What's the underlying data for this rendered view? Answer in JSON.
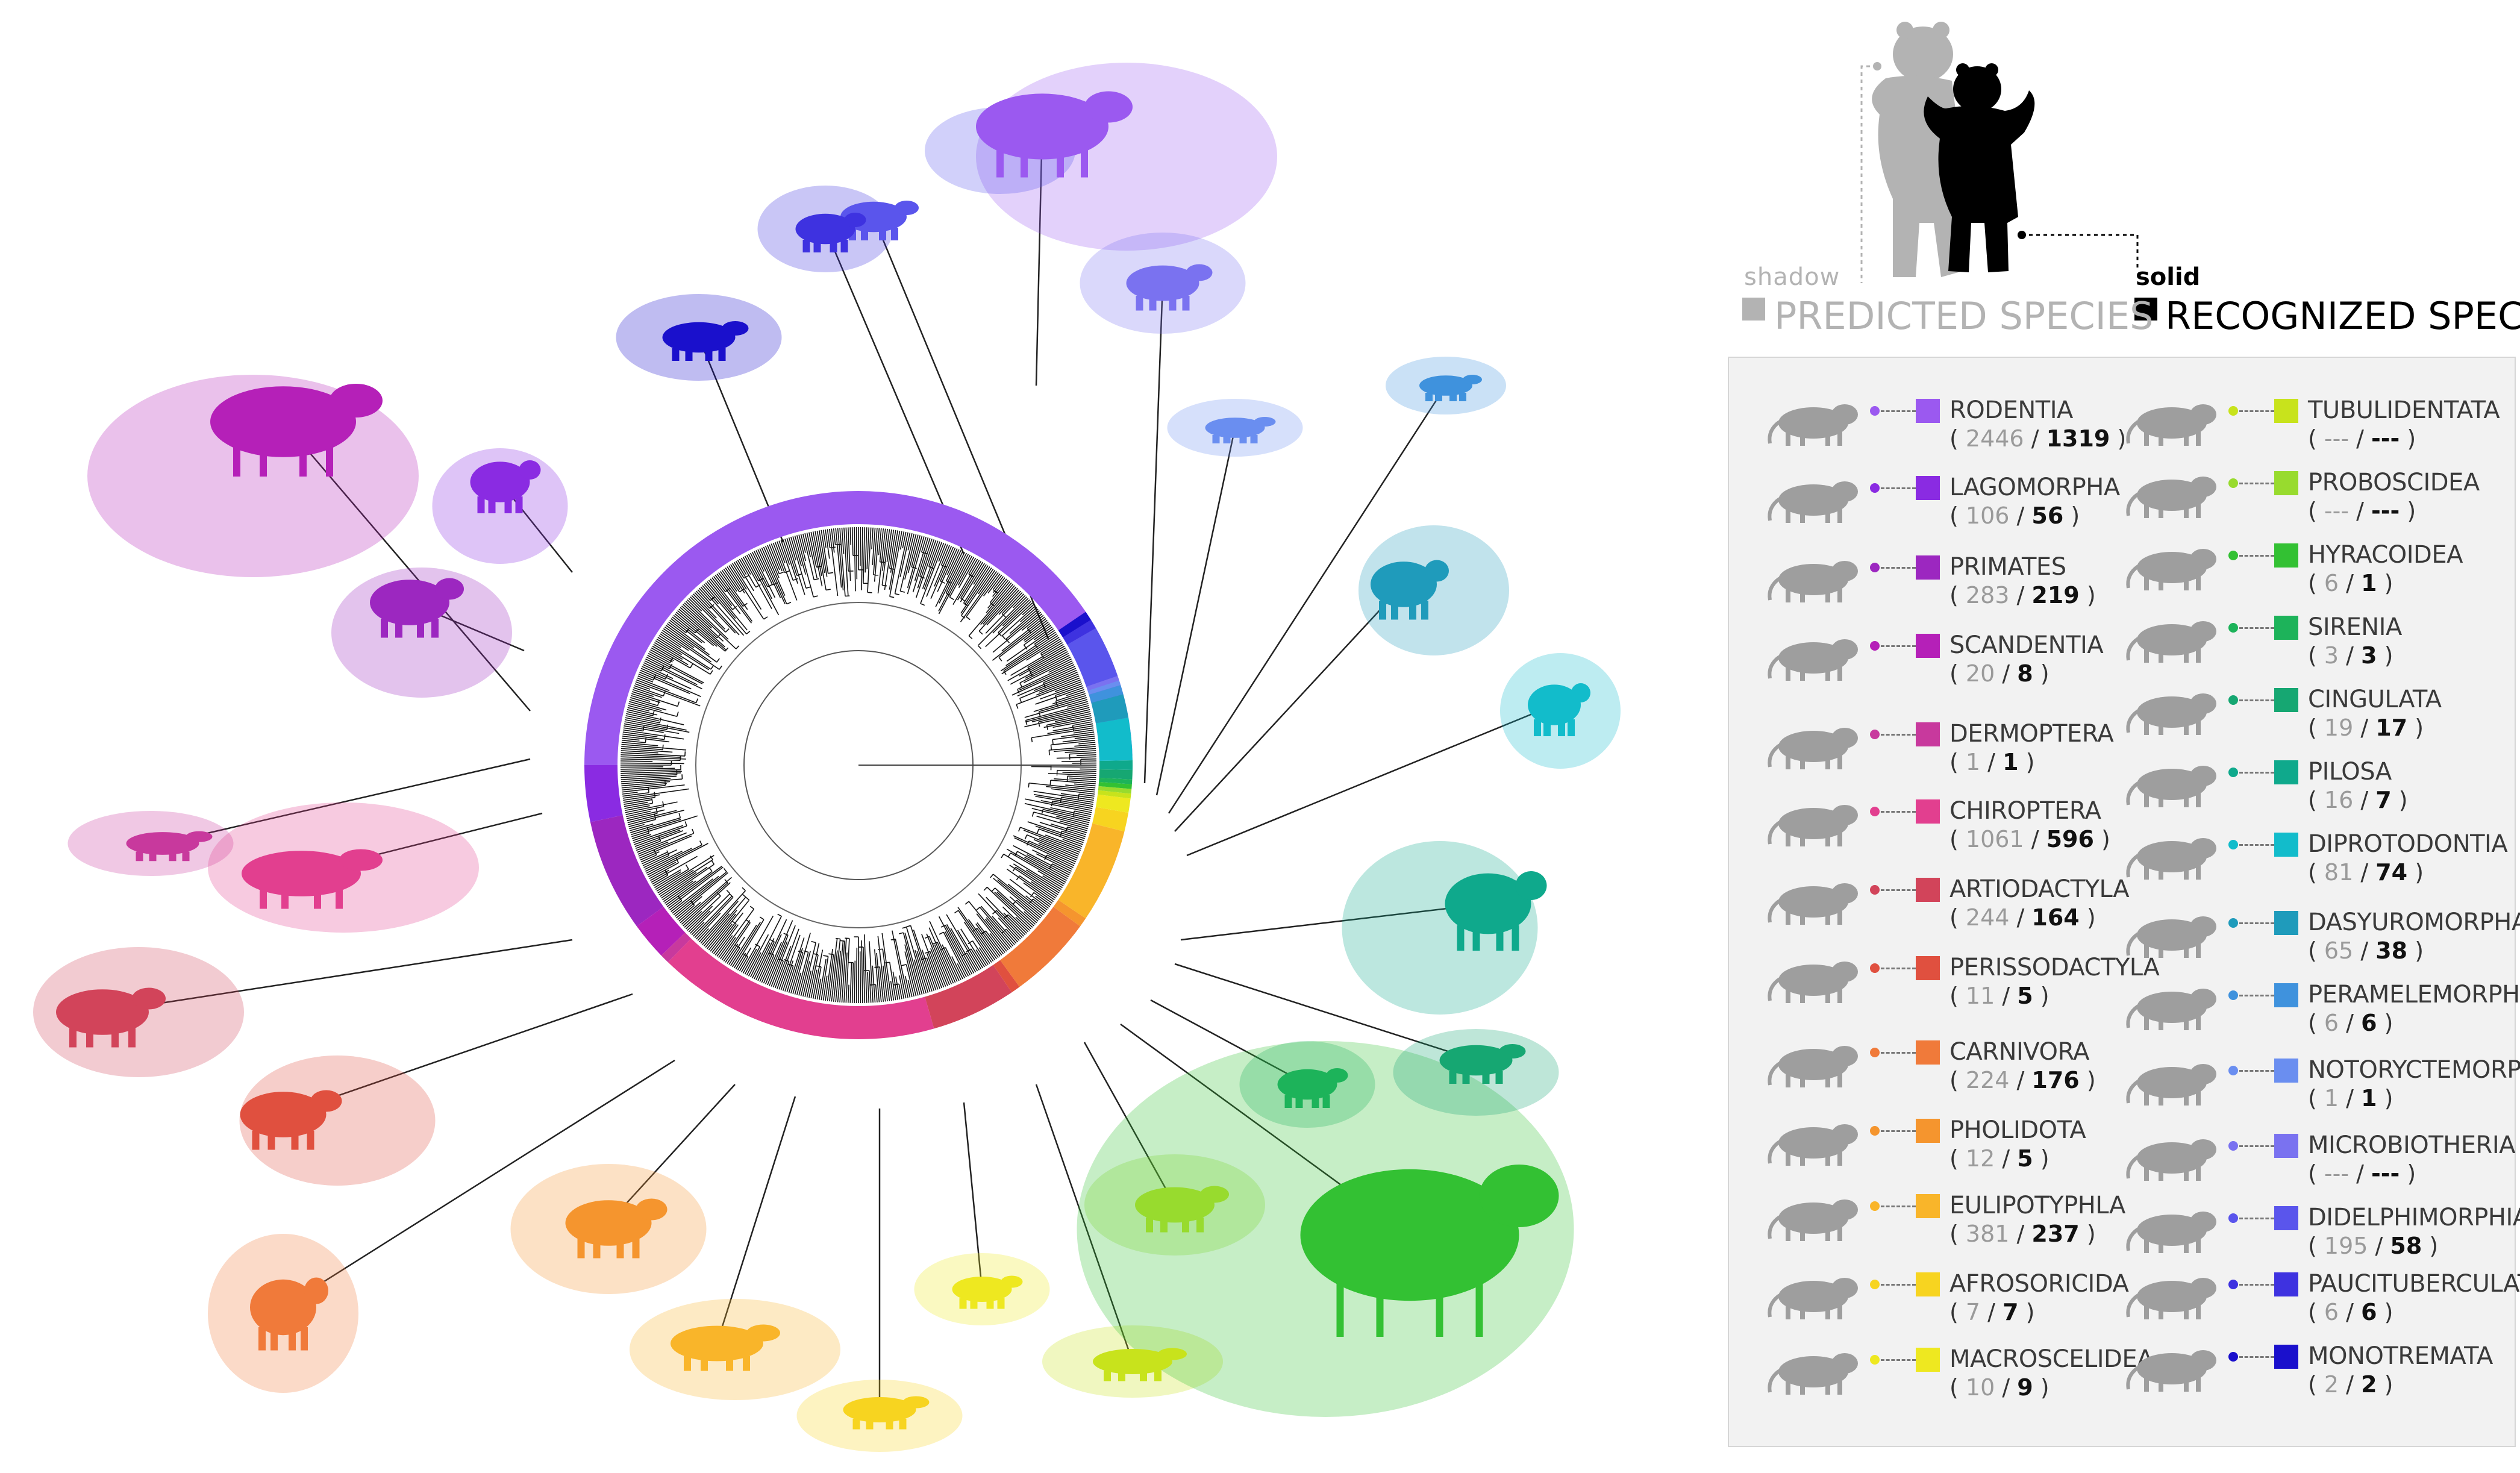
{
  "legend": {
    "shadow_label": "shadow",
    "solid_label": "solid",
    "predicted_label": "PREDICTED SPECIES",
    "recognized_label": "RECOGNIZED SPECIES",
    "predicted_color": "#b3b3b3",
    "recognized_color": "#000000"
  },
  "orders": [
    {
      "name": "RODENTIA",
      "predicted": "2446",
      "recognized": "1319",
      "color": "#9b59f0",
      "silhouette": "rodent-silhouette-icon"
    },
    {
      "name": "LAGOMORPHA",
      "predicted": "106",
      "recognized": "56",
      "color": "#8a2be2",
      "silhouette": "rabbit-silhouette-icon"
    },
    {
      "name": "PRIMATES",
      "predicted": "283",
      "recognized": "219",
      "color": "#9c27c0",
      "silhouette": "lemur-silhouette-icon"
    },
    {
      "name": "SCANDENTIA",
      "predicted": "20",
      "recognized": "8",
      "color": "#b520b8",
      "silhouette": "treeshrew-silhouette-icon"
    },
    {
      "name": "DERMOPTERA",
      "predicted": "1",
      "recognized": "1",
      "color": "#c8399d",
      "silhouette": "colugo-silhouette-icon"
    },
    {
      "name": "CHIROPTERA",
      "predicted": "1061",
      "recognized": "596",
      "color": "#e23f8f",
      "silhouette": "bat-silhouette-icon"
    },
    {
      "name": "ARTIODACTYLA",
      "predicted": "244",
      "recognized": "164",
      "color": "#d2445a",
      "silhouette": "deer-silhouette-icon"
    },
    {
      "name": "PERISSODACTYLA",
      "predicted": "11",
      "recognized": "5",
      "color": "#e0503f",
      "silhouette": "tapir-silhouette-icon"
    },
    {
      "name": "CARNIVORA",
      "predicted": "224",
      "recognized": "176",
      "color": "#f07a3a",
      "silhouette": "fox-silhouette-icon"
    },
    {
      "name": "PHOLIDOTA",
      "predicted": "12",
      "recognized": "5",
      "color": "#f5952e",
      "silhouette": "pangolin-silhouette-icon"
    },
    {
      "name": "EULIPOTYPHLA",
      "predicted": "381",
      "recognized": "237",
      "color": "#f9b52a",
      "silhouette": "hedgehog-silhouette-icon"
    },
    {
      "name": "AFROSORICIDA",
      "predicted": "7",
      "recognized": "7",
      "color": "#f7d420",
      "silhouette": "tenrec-silhouette-icon"
    },
    {
      "name": "MACROSCELIDEA",
      "predicted": "10",
      "recognized": "9",
      "color": "#eee820",
      "silhouette": "elephant-shrew-silhouette-icon"
    },
    {
      "name": "TUBULIDENTATA",
      "predicted": "---",
      "recognized": "---",
      "color": "#c8e31c",
      "silhouette": "aardvark-silhouette-icon"
    },
    {
      "name": "PROBOSCIDEA",
      "predicted": "---",
      "recognized": "---",
      "color": "#98db2e",
      "silhouette": "elephant-silhouette-icon"
    },
    {
      "name": "HYRACOIDEA",
      "predicted": "6",
      "recognized": "1",
      "color": "#33c133",
      "silhouette": "hyrax-silhouette-icon"
    },
    {
      "name": "SIRENIA",
      "predicted": "3",
      "recognized": "3",
      "color": "#1db35a",
      "silhouette": "manatee-silhouette-icon"
    },
    {
      "name": "CINGULATA",
      "predicted": "19",
      "recognized": "17",
      "color": "#16a772",
      "silhouette": "armadillo-silhouette-icon"
    },
    {
      "name": "PILOSA",
      "predicted": "16",
      "recognized": "7",
      "color": "#0fa98c",
      "silhouette": "anteater-silhouette-icon"
    },
    {
      "name": "DIPROTODONTIA",
      "predicted": "81",
      "recognized": "74",
      "color": "#12bccb",
      "silhouette": "koala-silhouette-icon"
    },
    {
      "name": "DASYUROMORPHA",
      "predicted": "65",
      "recognized": "38",
      "color": "#1f9bbb",
      "silhouette": "dasyurid-silhouette-icon"
    },
    {
      "name": "PERAMELEMORPHIA",
      "predicted": "6",
      "recognized": "6",
      "color": "#3f92dd",
      "silhouette": "bandicoot-silhouette-icon"
    },
    {
      "name": "NOTORYCTEMORPHIA",
      "predicted": "1",
      "recognized": "1",
      "color": "#6a8ef0",
      "silhouette": "marsupial-mole-silhouette-icon"
    },
    {
      "name": "MICROBIOTHERIA",
      "predicted": "---",
      "recognized": "---",
      "color": "#7a72f0",
      "silhouette": "monito-silhouette-icon"
    },
    {
      "name": "DIDELPHIMORPHIA",
      "predicted": "195",
      "recognized": "58",
      "color": "#5a55ec",
      "silhouette": "opossum-silhouette-icon"
    },
    {
      "name": "PAUCITUBERCULATA",
      "predicted": "6",
      "recognized": "6",
      "color": "#3e32e0",
      "silhouette": "shrew-opossum-silhouette-icon"
    },
    {
      "name": "MONOTREMATA",
      "predicted": "2",
      "recognized": "2",
      "color": "#1a10cc",
      "silhouette": "platypus-silhouette-icon"
    }
  ]
}
